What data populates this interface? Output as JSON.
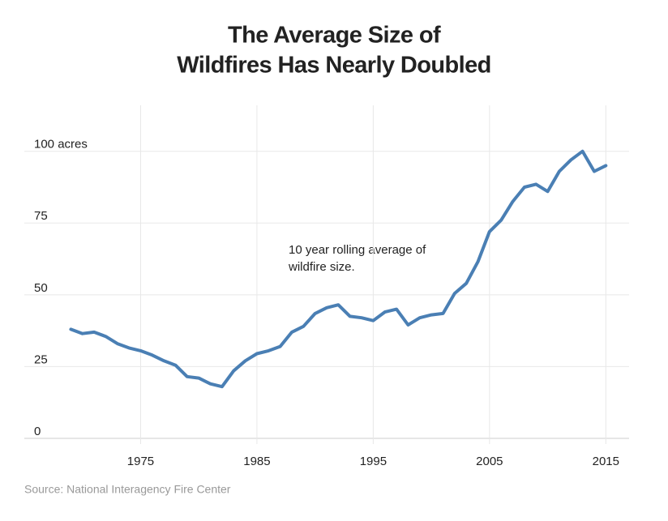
{
  "chart_data": {
    "type": "line",
    "title": [
      "The Average Size of",
      "Wildfires Has Nearly Doubled"
    ],
    "annotation": [
      "10 year rolling average of",
      "wildfire size."
    ],
    "source": "Source: National Interagency Fire Center",
    "x": [
      1969,
      1970,
      1971,
      1972,
      1973,
      1974,
      1975,
      1976,
      1977,
      1978,
      1979,
      1980,
      1981,
      1982,
      1983,
      1984,
      1985,
      1986,
      1987,
      1988,
      1989,
      1990,
      1991,
      1992,
      1993,
      1994,
      1995,
      1996,
      1997,
      1998,
      1999,
      2000,
      2001,
      2002,
      2003,
      2004,
      2005,
      2006,
      2007,
      2008,
      2009,
      2010,
      2011,
      2012,
      2013,
      2014,
      2015
    ],
    "values": [
      38,
      36.5,
      37,
      35.5,
      33,
      31.5,
      30.5,
      29,
      27,
      25.5,
      21.5,
      21,
      19,
      18,
      23.5,
      27,
      29.5,
      30.5,
      32,
      37,
      39,
      43.5,
      45.5,
      46.5,
      42.5,
      42,
      41,
      44,
      45,
      39.5,
      42,
      43,
      43.5,
      50.5,
      54,
      61.5,
      72,
      76,
      82.5,
      87.5,
      88.5,
      86,
      93,
      97,
      100,
      93,
      95
    ],
    "color": "#4a7fb4",
    "xlim": [
      1965,
      2017
    ],
    "ylim": [
      0,
      116
    ],
    "xticks": [
      1975,
      1985,
      1995,
      2005,
      2015
    ],
    "yticks": [
      0,
      25,
      50,
      75,
      {
        "value": 100,
        "label": "100 acres"
      }
    ],
    "grid": true
  }
}
